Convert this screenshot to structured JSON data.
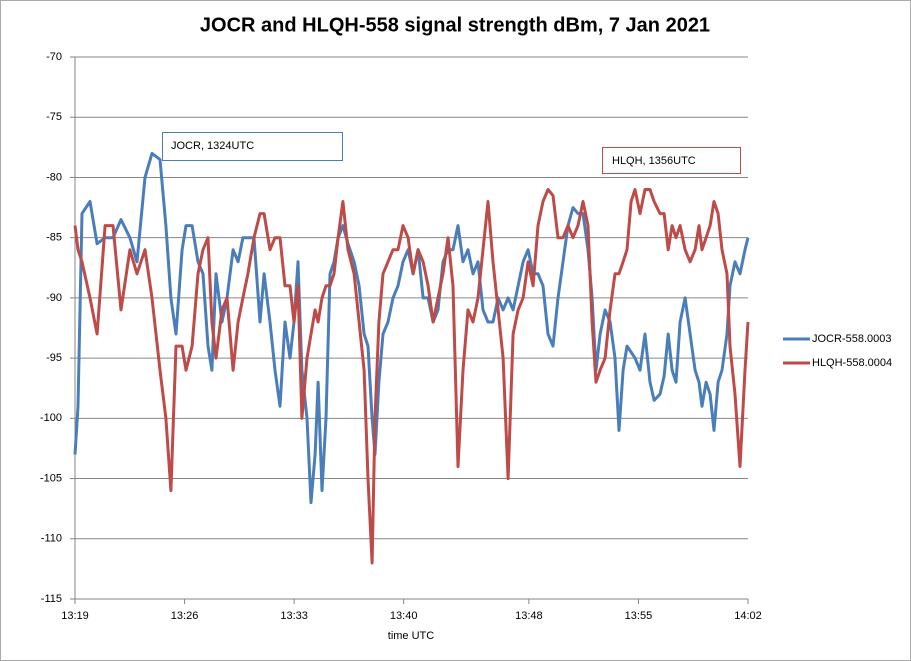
{
  "chart_data": {
    "type": "line",
    "title": "JOCR and HLQH-558 signal strength dBm,  7 Jan 2021",
    "x_label": "time UTC",
    "annotations": [
      "JOCR,  1324UTC",
      "HLQH, 1356UTC"
    ],
    "xlim": [
      799,
      842
    ],
    "xticks": [
      {
        "value": 799,
        "label": "13:19"
      },
      {
        "value": 806,
        "label": "13:26"
      },
      {
        "value": 813,
        "label": "13:33"
      },
      {
        "value": 820,
        "label": "13:40"
      },
      {
        "value": 828,
        "label": "13:48"
      },
      {
        "value": 835,
        "label": "13:55"
      },
      {
        "value": 842,
        "label": "14:02"
      }
    ],
    "ylim": [
      -115,
      -70
    ],
    "yticks": [
      -115,
      -110,
      -105,
      -100,
      -95,
      -90,
      -85,
      -80,
      -75,
      -70
    ],
    "grid": true,
    "legend": "right",
    "x": [
      799,
      799.19,
      799.45,
      799.96,
      800.41,
      800.92,
      801.43,
      801.94,
      802.51,
      802.96,
      803.47,
      803.92,
      804.43,
      804.81,
      805.13,
      805.45,
      805.84,
      806.09,
      806.48,
      806.86,
      807.18,
      807.5,
      807.75,
      808.01,
      808.39,
      808.71,
      809.1,
      809.42,
      809.73,
      810.05,
      810.44,
      810.82,
      811.08,
      811.46,
      811.78,
      812.1,
      812.42,
      812.74,
      812.99,
      813.25,
      813.5,
      813.82,
      814.08,
      814.34,
      814.53,
      814.78,
      815.04,
      815.29,
      815.55,
      815.81,
      816.12,
      816.44,
      816.83,
      817.15,
      817.47,
      817.72,
      817.98,
      818.17,
      818.42,
      818.68,
      819,
      819.32,
      819.64,
      819.96,
      820.28,
      820.6,
      820.92,
      821.24,
      821.56,
      821.88,
      822.19,
      822.51,
      822.83,
      823.15,
      823.47,
      823.79,
      824.11,
      824.43,
      824.75,
      825.07,
      825.39,
      825.71,
      826.03,
      826.35,
      826.67,
      826.99,
      827.31,
      827.63,
      827.95,
      828.27,
      828.58,
      828.9,
      829.22,
      829.54,
      829.86,
      830.18,
      830.5,
      830.82,
      831.14,
      831.46,
      831.78,
      832.04,
      832.29,
      832.55,
      832.87,
      833.19,
      833.5,
      833.76,
      834.02,
      834.27,
      834.53,
      834.78,
      835.1,
      835.42,
      835.74,
      836,
      836.38,
      836.64,
      836.9,
      837.15,
      837.4,
      837.66,
      837.98,
      838.3,
      838.62,
      838.87,
      839.06,
      839.32,
      839.58,
      839.83,
      840.09,
      840.34,
      840.66,
      840.85,
      841.17,
      841.49,
      841.81,
      842
    ],
    "series": [
      {
        "name": "JOCR-558.0003",
        "color": "#4a7ebb",
        "values": [
          -103,
          -99,
          -83,
          -82,
          -85.5,
          -85,
          -85,
          -83.5,
          -85,
          -87,
          -80,
          -78,
          -78.5,
          -84,
          -90,
          -93,
          -86,
          -84,
          -84,
          -87,
          -88,
          -94,
          -96,
          -88,
          -92,
          -90,
          -86,
          -87,
          -85,
          -85,
          -85,
          -92,
          -88,
          -92,
          -96,
          -99,
          -92,
          -95,
          -92,
          -87,
          -96,
          -100,
          -107,
          -103,
          -97,
          -106,
          -100,
          -88,
          -87,
          -85,
          -84,
          -85.5,
          -87,
          -89,
          -93,
          -94,
          -100,
          -103,
          -97,
          -93,
          -92,
          -90,
          -89,
          -87,
          -86,
          -88,
          -86,
          -90,
          -90,
          -92,
          -91,
          -87,
          -86,
          -86,
          -84,
          -87,
          -86,
          -88,
          -87,
          -91,
          -92,
          -92,
          -90,
          -91,
          -90,
          -91,
          -89,
          -87,
          -86,
          -88,
          -88,
          -89,
          -93,
          -94,
          -90,
          -87,
          -84,
          -82.5,
          -83,
          -83,
          -86,
          -90,
          -96,
          -93,
          -91,
          -92,
          -95,
          -101,
          -96,
          -94,
          -94.5,
          -95,
          -96,
          -93,
          -97,
          -98.5,
          -98,
          -96.5,
          -93,
          -96,
          -97,
          -92,
          -90,
          -93,
          -96,
          -97,
          -99,
          -97,
          -98,
          -101,
          -97,
          -96,
          -93,
          -89,
          -87,
          -88,
          -86,
          -85
        ]
      },
      {
        "name": "HLQH-558.0004",
        "color": "#be4b48",
        "values": [
          -84,
          -86,
          -87,
          -90,
          -93,
          -84,
          -84,
          -91,
          -86,
          -88,
          -86,
          -90,
          -96,
          -100,
          -106,
          -94,
          -94,
          -96,
          -94,
          -88,
          -86,
          -85,
          -92,
          -95,
          -91,
          -90,
          -96,
          -92,
          -90,
          -88,
          -85,
          -83,
          -83,
          -86,
          -85,
          -85,
          -89,
          -89,
          -92,
          -89,
          -100,
          -95,
          -93,
          -91,
          -92,
          -90,
          -89,
          -89,
          -88,
          -85,
          -82,
          -86,
          -88,
          -92,
          -96,
          -105,
          -112,
          -100,
          -92,
          -88,
          -87,
          -86,
          -86,
          -84,
          -85,
          -88,
          -86,
          -87,
          -89,
          -92,
          -90,
          -88,
          -85,
          -89,
          -104,
          -96,
          -91,
          -92,
          -90,
          -86,
          -82,
          -87,
          -91,
          -95,
          -105,
          -93,
          -91,
          -90,
          -87,
          -89,
          -84,
          -82,
          -81,
          -81.5,
          -85,
          -85,
          -84,
          -85,
          -84,
          -82,
          -84,
          -92,
          -97,
          -96,
          -95,
          -91,
          -88,
          -88,
          -87,
          -86,
          -82,
          -81,
          -83,
          -81,
          -81,
          -82,
          -83,
          -83,
          -86,
          -84,
          -85,
          -84,
          -86,
          -87,
          -86,
          -84,
          -86,
          -85,
          -84,
          -82,
          -83,
          -86,
          -88,
          -94,
          -98,
          -104,
          -96,
          -92
        ]
      }
    ]
  }
}
